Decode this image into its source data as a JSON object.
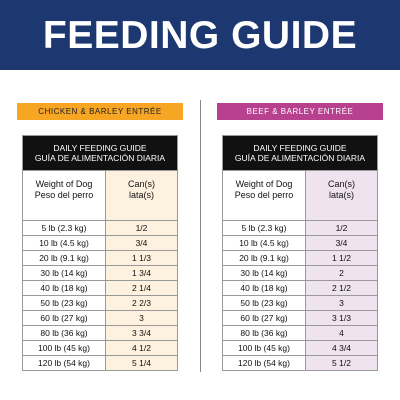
{
  "header": {
    "title": "FEEDING GUIDE"
  },
  "panels": [
    {
      "label": "CHICKEN & BARLEY ENTRÉE",
      "table": {
        "title_lines": [
          "DAILY FEEDING GUIDE",
          "GUÍA DE ALIMENTACIÓN DIARIA"
        ],
        "col_headers": [
          [
            "Weight of Dog",
            "Peso del perro"
          ],
          [
            "Can(s)",
            "lata(s)"
          ]
        ],
        "rows": [
          [
            "5 lb (2.3 kg)",
            "1/2"
          ],
          [
            "10 lb (4.5 kg)",
            "3/4"
          ],
          [
            "20 lb (9.1 kg)",
            "1 1/3"
          ],
          [
            "30 lb (14 kg)",
            "1 3/4"
          ],
          [
            "40 lb (18 kg)",
            "2 1/4"
          ],
          [
            "50 lb (23 kg)",
            "2 2/3"
          ],
          [
            "60 lb (27 kg)",
            "3"
          ],
          [
            "80 lb (36 kg)",
            "3 3/4"
          ],
          [
            "100 lb (45 kg)",
            "4 1/2"
          ],
          [
            "120 lb (54 kg)",
            "5 1/4"
          ]
        ]
      }
    },
    {
      "label": "BEEF & BARLEY ENTRÉE",
      "table": {
        "title_lines": [
          "DAILY FEEDING GUIDE",
          "GUÍA DE ALIMENTACIÓN DIARIA"
        ],
        "col_headers": [
          [
            "Weight of Dog",
            "Peso del perro"
          ],
          [
            "Can(s)",
            "lata(s)"
          ]
        ],
        "rows": [
          [
            "5 lb (2.3 kg)",
            "1/2"
          ],
          [
            "10 lb (4.5 kg)",
            "3/4"
          ],
          [
            "20 lb (9.1 kg)",
            "1 1/2"
          ],
          [
            "30 lb (14 kg)",
            "2"
          ],
          [
            "40 lb (18 kg)",
            "2 1/2"
          ],
          [
            "50 lb (23 kg)",
            "3"
          ],
          [
            "60 lb (27 kg)",
            "3 1/3"
          ],
          [
            "80 lb (36 kg)",
            "4"
          ],
          [
            "100 lb (45 kg)",
            "4 3/4"
          ],
          [
            "120 lb (54 kg)",
            "5 1/2"
          ]
        ]
      }
    }
  ]
}
